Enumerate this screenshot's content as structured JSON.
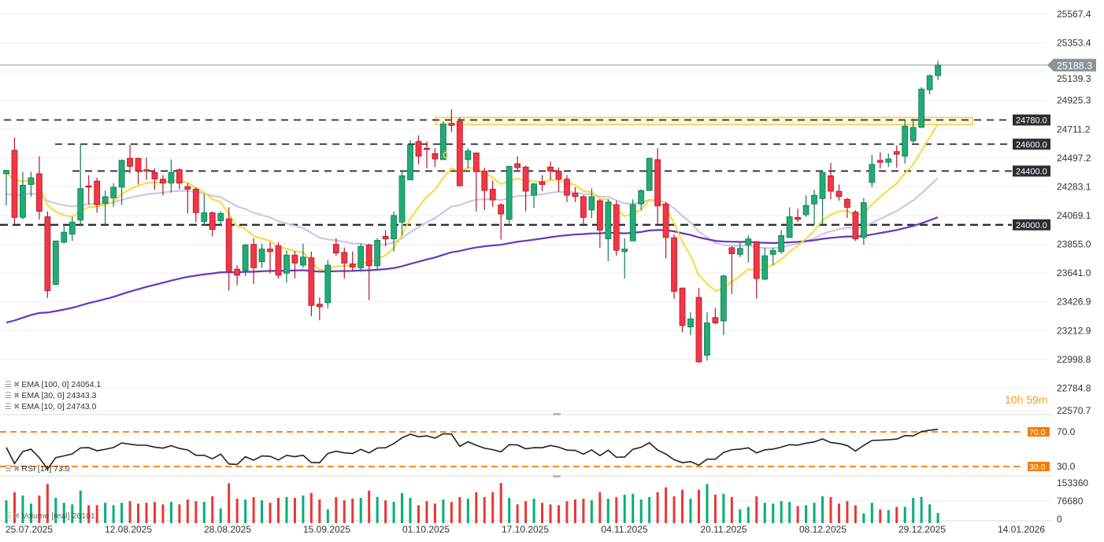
{
  "chart_data": {
    "type": "candlestick",
    "price_axis": {
      "ticks": [
        "25567.4",
        "25353.4",
        "25139.3",
        "24925.3",
        "24711.2",
        "24497.2",
        "24283.1",
        "24069.1",
        "23855.0",
        "23641.0",
        "23426.9",
        "23212.9",
        "22998.8",
        "22784.8",
        "22570.7"
      ]
    },
    "time_axis": {
      "ticks": [
        "25.07.2025",
        "12.08.2025",
        "28.08.2025",
        "15.09.2025",
        "01.10.2025",
        "17.10.2025",
        "04.11.2025",
        "20.11.2025",
        "08.12.2025",
        "29.12.2025",
        "14.01.2026"
      ]
    },
    "last_price": "25188.3",
    "levels": [
      {
        "price": 24780,
        "label": "24780.0"
      },
      {
        "price": 24600,
        "label": "24600.0"
      },
      {
        "price": 24400,
        "label": "24400.0"
      },
      {
        "price": 24000,
        "label": "24000.0"
      }
    ],
    "zone": {
      "from": 24745,
      "to": 24800
    },
    "ohlc": [
      [
        24380,
        24410,
        24145,
        24405
      ],
      [
        24555,
        24650,
        24000,
        24055
      ],
      [
        24055,
        24395,
        24040,
        24295
      ],
      [
        24300,
        24395,
        24210,
        24350
      ],
      [
        24380,
        24510,
        24040,
        24100
      ],
      [
        24060,
        24100,
        23455,
        23510
      ],
      [
        23555,
        23880,
        23555,
        23880
      ],
      [
        23870,
        24000,
        23860,
        23945
      ],
      [
        23930,
        24060,
        23880,
        24020
      ],
      [
        24035,
        24600,
        23990,
        24270
      ],
      [
        24290,
        24370,
        24150,
        24280
      ],
      [
        24325,
        24350,
        24090,
        24150
      ],
      [
        24160,
        24255,
        24000,
        24210
      ],
      [
        24200,
        24310,
        24135,
        24280
      ],
      [
        24280,
        24485,
        24148,
        24480
      ],
      [
        24495,
        24595,
        24383,
        24435
      ],
      [
        24495,
        24500,
        24300,
        24400
      ],
      [
        24410,
        24500,
        24335,
        24400
      ],
      [
        24390,
        24420,
        24260,
        24340
      ],
      [
        24340,
        24370,
        24220,
        24310
      ],
      [
        24310,
        24485,
        24240,
        24390
      ],
      [
        24410,
        24420,
        24265,
        24310
      ],
      [
        24285,
        24310,
        24085,
        24265
      ],
      [
        24266,
        24280,
        24020,
        24090
      ],
      [
        24025,
        24230,
        24000,
        24090
      ],
      [
        24090,
        24100,
        23914,
        23965
      ],
      [
        24030,
        24100,
        23990,
        24085
      ],
      [
        24045,
        24130,
        23510,
        23650
      ],
      [
        23670,
        23700,
        23550,
        23625
      ],
      [
        23660,
        23860,
        23620,
        23850
      ],
      [
        23855,
        23900,
        23560,
        23680
      ],
      [
        23725,
        23860,
        23680,
        23820
      ],
      [
        23820,
        23870,
        23640,
        23800
      ],
      [
        23845,
        23870,
        23600,
        23625
      ],
      [
        23640,
        23810,
        23570,
        23775
      ],
      [
        23775,
        23805,
        23600,
        23715
      ],
      [
        23700,
        23860,
        23680,
        23760
      ],
      [
        23755,
        23800,
        23320,
        23400
      ],
      [
        23410,
        23460,
        23290,
        23390
      ],
      [
        23420,
        23740,
        23380,
        23700
      ],
      [
        23855,
        23900,
        23770,
        23790
      ],
      [
        23795,
        23830,
        23600,
        23715
      ],
      [
        23710,
        23800,
        23660,
        23685
      ],
      [
        23680,
        23860,
        23650,
        23840
      ],
      [
        23850,
        23860,
        23440,
        23695
      ],
      [
        23695,
        23900,
        23670,
        23885
      ],
      [
        23915,
        23960,
        23840,
        23895
      ],
      [
        23895,
        24100,
        23800,
        24070
      ],
      [
        24020,
        24400,
        23920,
        24365
      ],
      [
        24335,
        24630,
        24330,
        24595
      ],
      [
        24620,
        24665,
        24450,
        24510
      ],
      [
        24570,
        24620,
        24420,
        24560
      ],
      [
        24530,
        24570,
        24430,
        24490
      ],
      [
        24485,
        24770,
        24485,
        24750
      ],
      [
        24755,
        24860,
        24690,
        24740
      ],
      [
        24770,
        24800,
        24290,
        24290
      ],
      [
        24485,
        24570,
        24420,
        24550
      ],
      [
        24535,
        24535,
        24100,
        24395
      ],
      [
        24400,
        24425,
        24110,
        24255
      ],
      [
        24265,
        24330,
        24135,
        24185
      ],
      [
        24150,
        24160,
        23890,
        24080
      ],
      [
        24040,
        24440,
        24010,
        24435
      ],
      [
        24455,
        24510,
        24395,
        24425
      ],
      [
        24430,
        24440,
        24100,
        24250
      ],
      [
        24220,
        24310,
        24125,
        24305
      ],
      [
        24320,
        24370,
        24250,
        24300
      ],
      [
        24430,
        24470,
        24335,
        24400
      ],
      [
        24400,
        24425,
        24245,
        24340
      ],
      [
        24340,
        24370,
        24170,
        24220
      ],
      [
        24235,
        24280,
        24170,
        24210
      ],
      [
        24210,
        24220,
        24000,
        24055
      ],
      [
        24110,
        24270,
        24050,
        24210
      ],
      [
        24180,
        24190,
        23830,
        23960
      ],
      [
        23895,
        24190,
        23730,
        24170
      ],
      [
        24150,
        24180,
        23770,
        23810
      ],
      [
        23800,
        23900,
        23600,
        23820
      ],
      [
        23880,
        24190,
        23880,
        24150
      ],
      [
        24155,
        24265,
        24110,
        24255
      ],
      [
        24255,
        24500,
        24255,
        24495
      ],
      [
        24485,
        24570,
        24000,
        24140
      ],
      [
        24155,
        24170,
        23750,
        23905
      ],
      [
        23905,
        23930,
        23450,
        23505
      ],
      [
        23530,
        23530,
        23200,
        23250
      ],
      [
        23240,
        23350,
        23180,
        23300
      ],
      [
        23460,
        23530,
        22975,
        22980
      ],
      [
        23030,
        23350,
        22990,
        23270
      ],
      [
        23310,
        23380,
        23260,
        23270
      ],
      [
        23285,
        23630,
        23180,
        23620
      ],
      [
        23830,
        23840,
        23485,
        23785
      ],
      [
        23780,
        23870,
        23760,
        23825
      ],
      [
        23850,
        23920,
        23720,
        23895
      ],
      [
        23875,
        23880,
        23450,
        23600
      ],
      [
        23595,
        23830,
        23590,
        23770
      ],
      [
        23780,
        23830,
        23700,
        23810
      ],
      [
        23800,
        23960,
        23785,
        23920
      ],
      [
        23905,
        24130,
        23905,
        24060
      ],
      [
        24055,
        24120,
        24020,
        24040
      ],
      [
        24075,
        24220,
        24060,
        24145
      ],
      [
        24155,
        24260,
        24000,
        24220
      ],
      [
        24195,
        24395,
        24000,
        24390
      ],
      [
        24365,
        24460,
        24190,
        24250
      ],
      [
        24250,
        24300,
        24180,
        24210
      ],
      [
        24190,
        24200,
        24050,
        24130
      ],
      [
        24095,
        24110,
        23880,
        23895
      ],
      [
        23905,
        24200,
        23850,
        24165
      ],
      [
        24315,
        24520,
        24280,
        24450
      ],
      [
        24480,
        24540,
        24420,
        24465
      ],
      [
        24465,
        24530,
        24430,
        24490
      ],
      [
        24545,
        24590,
        24425,
        24525
      ],
      [
        24510,
        24775,
        24455,
        24735
      ],
      [
        24625,
        24790,
        24610,
        24725
      ],
      [
        24725,
        25025,
        24720,
        25010
      ],
      [
        25005,
        25120,
        24970,
        25110
      ],
      [
        25110,
        25220,
        25075,
        25188.3
      ]
    ],
    "volume": [
      79900,
      114400,
      100600,
      66000,
      100600,
      148900,
      90200,
      69500,
      62600,
      121300,
      59200,
      59200,
      69500,
      59200,
      69500,
      76400,
      66000,
      69500,
      73000,
      62600,
      73000,
      62600,
      83300,
      76400,
      73000,
      97100,
      45400,
      152300,
      86800,
      83300,
      93700,
      79900,
      69500,
      90200,
      93700,
      90200,
      100600,
      110900,
      83300,
      41900,
      93700,
      79900,
      86800,
      90200,
      121300,
      93700,
      79900,
      73000,
      110900,
      90200,
      59200,
      76400,
      66000,
      83300,
      73000,
      93700,
      86800,
      114400,
      93700,
      114400,
      153360,
      90200,
      62600,
      76400,
      86800,
      69500,
      62600,
      59200,
      76400,
      83300,
      86800,
      79900,
      114400,
      86800,
      93700,
      104000,
      107500,
      83300,
      93700,
      114400,
      135100,
      97100,
      124700,
      86800,
      124700,
      148900,
      104000,
      107500,
      93700,
      41900,
      52300,
      97100,
      69500,
      66000,
      76400,
      73000,
      55700,
      59200,
      69500,
      97100,
      93700,
      66000,
      76400,
      59200,
      24700,
      69500,
      41900,
      38500,
      52300,
      52300,
      90200,
      93700,
      62600,
      26101
    ],
    "volume_axis": {
      "ticks": [
        "153360",
        "76680",
        "0"
      ]
    },
    "rsi_axis": {
      "levels": [
        {
          "value": 70,
          "label": "70.0"
        },
        {
          "value": 30,
          "label": "30.0"
        }
      ]
    },
    "indicators": {
      "ema100": {
        "label": "EMA [100,  0] 24054.1",
        "color": "#673ab7"
      },
      "ema30": {
        "label": "EMA [30,  0] 24343.3",
        "color": "#d1c4e9"
      },
      "ema10": {
        "label": "EMA [10,  0] 24743.0",
        "color": "#fdd835"
      },
      "rsi": {
        "label": "RSI [14] 73.0",
        "color": "#222222"
      },
      "volume": {
        "label": "Volume [real] 26101"
      }
    },
    "colors": {
      "up": "#22ab74",
      "down": "#f23645",
      "level": "#2a2e33",
      "rsi_band": "#f57c00",
      "zone": "#f5c242"
    }
  },
  "countdown": {
    "hours": "10",
    "h": "h",
    "minutes": "59",
    "m": "m"
  }
}
